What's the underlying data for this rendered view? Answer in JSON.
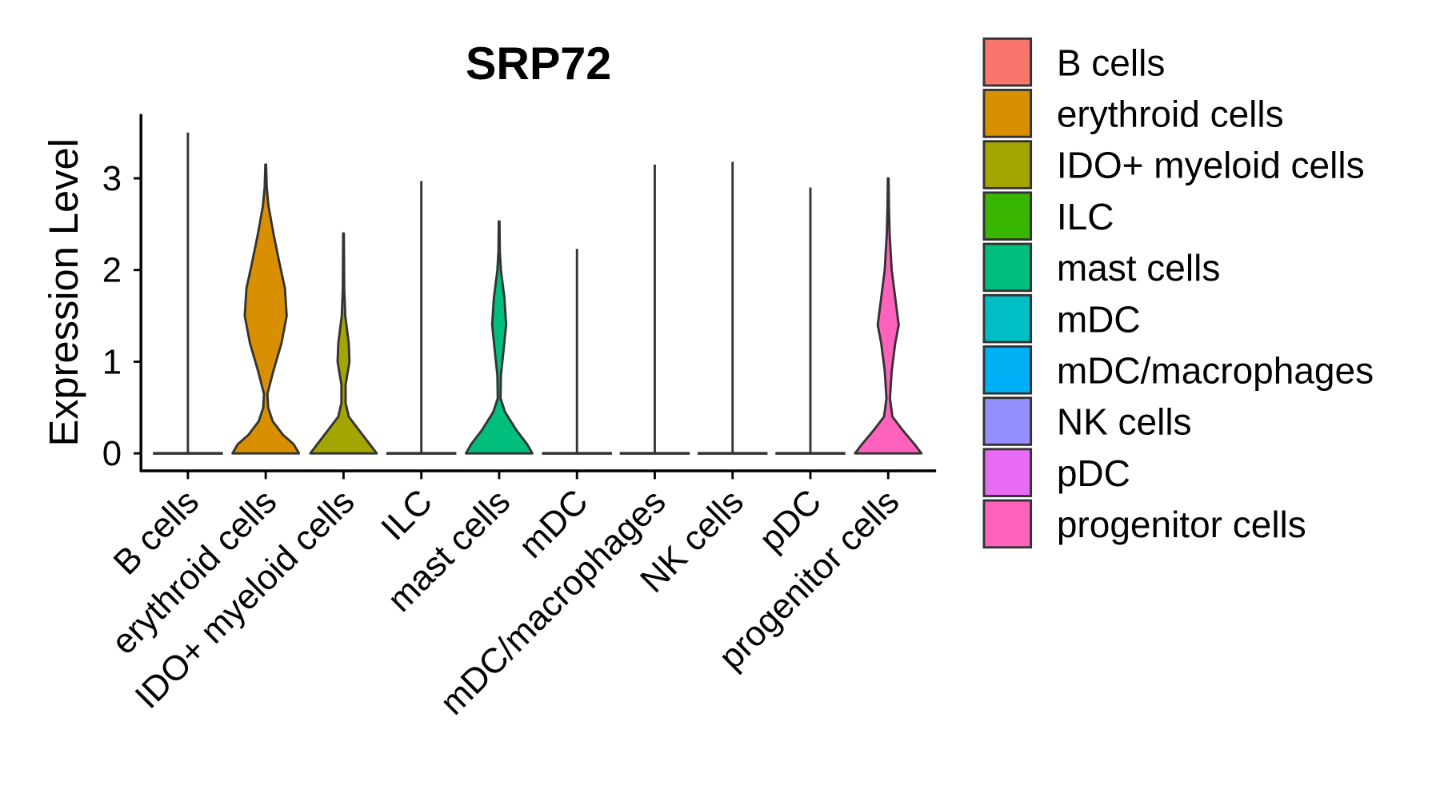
{
  "chart_data": {
    "type": "violin",
    "title": "SRP72",
    "xlabel": "",
    "ylabel": "Expression Level",
    "ylim": [
      -0.15,
      3.7
    ],
    "yticks": [
      0,
      1,
      2,
      3
    ],
    "yticklabels": [
      "0",
      "1",
      "2",
      "3"
    ],
    "grid": false,
    "legend_position": "right",
    "categories": [
      "B cells",
      "erythroid cells",
      "IDO+ myeloid cells",
      "ILC",
      "mast cells",
      "mDC",
      "mDC/macrophages",
      "NK cells",
      "pDC",
      "progenitor cells"
    ],
    "colors": [
      "#F8766D",
      "#D89000",
      "#A3A500",
      "#39B600",
      "#00BF7D",
      "#00BFC4",
      "#00B0F6",
      "#9590FF",
      "#E76BF3",
      "#FF62BC"
    ],
    "series": [
      {
        "name": "B cells",
        "max": 3.5,
        "density": [
          [
            0,
            1
          ],
          [
            0.005,
            0
          ]
        ]
      },
      {
        "name": "erythroid cells",
        "max": 3.15,
        "density": [
          [
            0,
            1
          ],
          [
            0.1,
            0.8
          ],
          [
            0.2,
            0.5
          ],
          [
            0.35,
            0.2
          ],
          [
            0.5,
            0.07
          ],
          [
            0.65,
            0.05
          ],
          [
            0.9,
            0.22
          ],
          [
            1.2,
            0.45
          ],
          [
            1.5,
            0.6
          ],
          [
            1.8,
            0.55
          ],
          [
            2.1,
            0.38
          ],
          [
            2.4,
            0.22
          ],
          [
            2.7,
            0.08
          ],
          [
            2.9,
            0.03
          ],
          [
            3.15,
            0.01
          ]
        ]
      },
      {
        "name": "IDO+ myeloid cells",
        "max": 2.4,
        "density": [
          [
            0,
            1
          ],
          [
            0.1,
            0.75
          ],
          [
            0.25,
            0.45
          ],
          [
            0.4,
            0.15
          ],
          [
            0.55,
            0.06
          ],
          [
            0.75,
            0.06
          ],
          [
            1.0,
            0.17
          ],
          [
            1.2,
            0.15
          ],
          [
            1.5,
            0.05
          ],
          [
            1.8,
            0.02
          ],
          [
            2.4,
            0.01
          ]
        ]
      },
      {
        "name": "ILC",
        "max": 2.97,
        "density": [
          [
            0,
            1
          ],
          [
            0.005,
            0
          ]
        ]
      },
      {
        "name": "mast cells",
        "max": 2.53,
        "density": [
          [
            0,
            1
          ],
          [
            0.1,
            0.8
          ],
          [
            0.25,
            0.5
          ],
          [
            0.45,
            0.17
          ],
          [
            0.6,
            0.04
          ],
          [
            0.85,
            0.05
          ],
          [
            1.1,
            0.12
          ],
          [
            1.4,
            0.2
          ],
          [
            1.7,
            0.15
          ],
          [
            2.0,
            0.05
          ],
          [
            2.2,
            0.02
          ],
          [
            2.53,
            0.01
          ]
        ]
      },
      {
        "name": "mDC",
        "max": 2.23,
        "density": [
          [
            0,
            1
          ],
          [
            0.005,
            0
          ]
        ]
      },
      {
        "name": "mDC/macrophages",
        "max": 3.15,
        "density": [
          [
            0,
            1
          ],
          [
            0.005,
            0
          ]
        ]
      },
      {
        "name": "NK cells",
        "max": 3.18,
        "density": [
          [
            0,
            1
          ],
          [
            0.005,
            0
          ]
        ]
      },
      {
        "name": "pDC",
        "max": 2.9,
        "density": [
          [
            0,
            1
          ],
          [
            0.005,
            0
          ]
        ]
      },
      {
        "name": "progenitor cells",
        "max": 3.0,
        "density": [
          [
            0,
            1
          ],
          [
            0.1,
            0.75
          ],
          [
            0.25,
            0.42
          ],
          [
            0.4,
            0.12
          ],
          [
            0.6,
            0.05
          ],
          [
            0.9,
            0.1
          ],
          [
            1.2,
            0.2
          ],
          [
            1.4,
            0.3
          ],
          [
            1.7,
            0.2
          ],
          [
            2.0,
            0.1
          ],
          [
            2.4,
            0.04
          ],
          [
            2.7,
            0.02
          ],
          [
            3.0,
            0.01
          ]
        ]
      }
    ]
  }
}
